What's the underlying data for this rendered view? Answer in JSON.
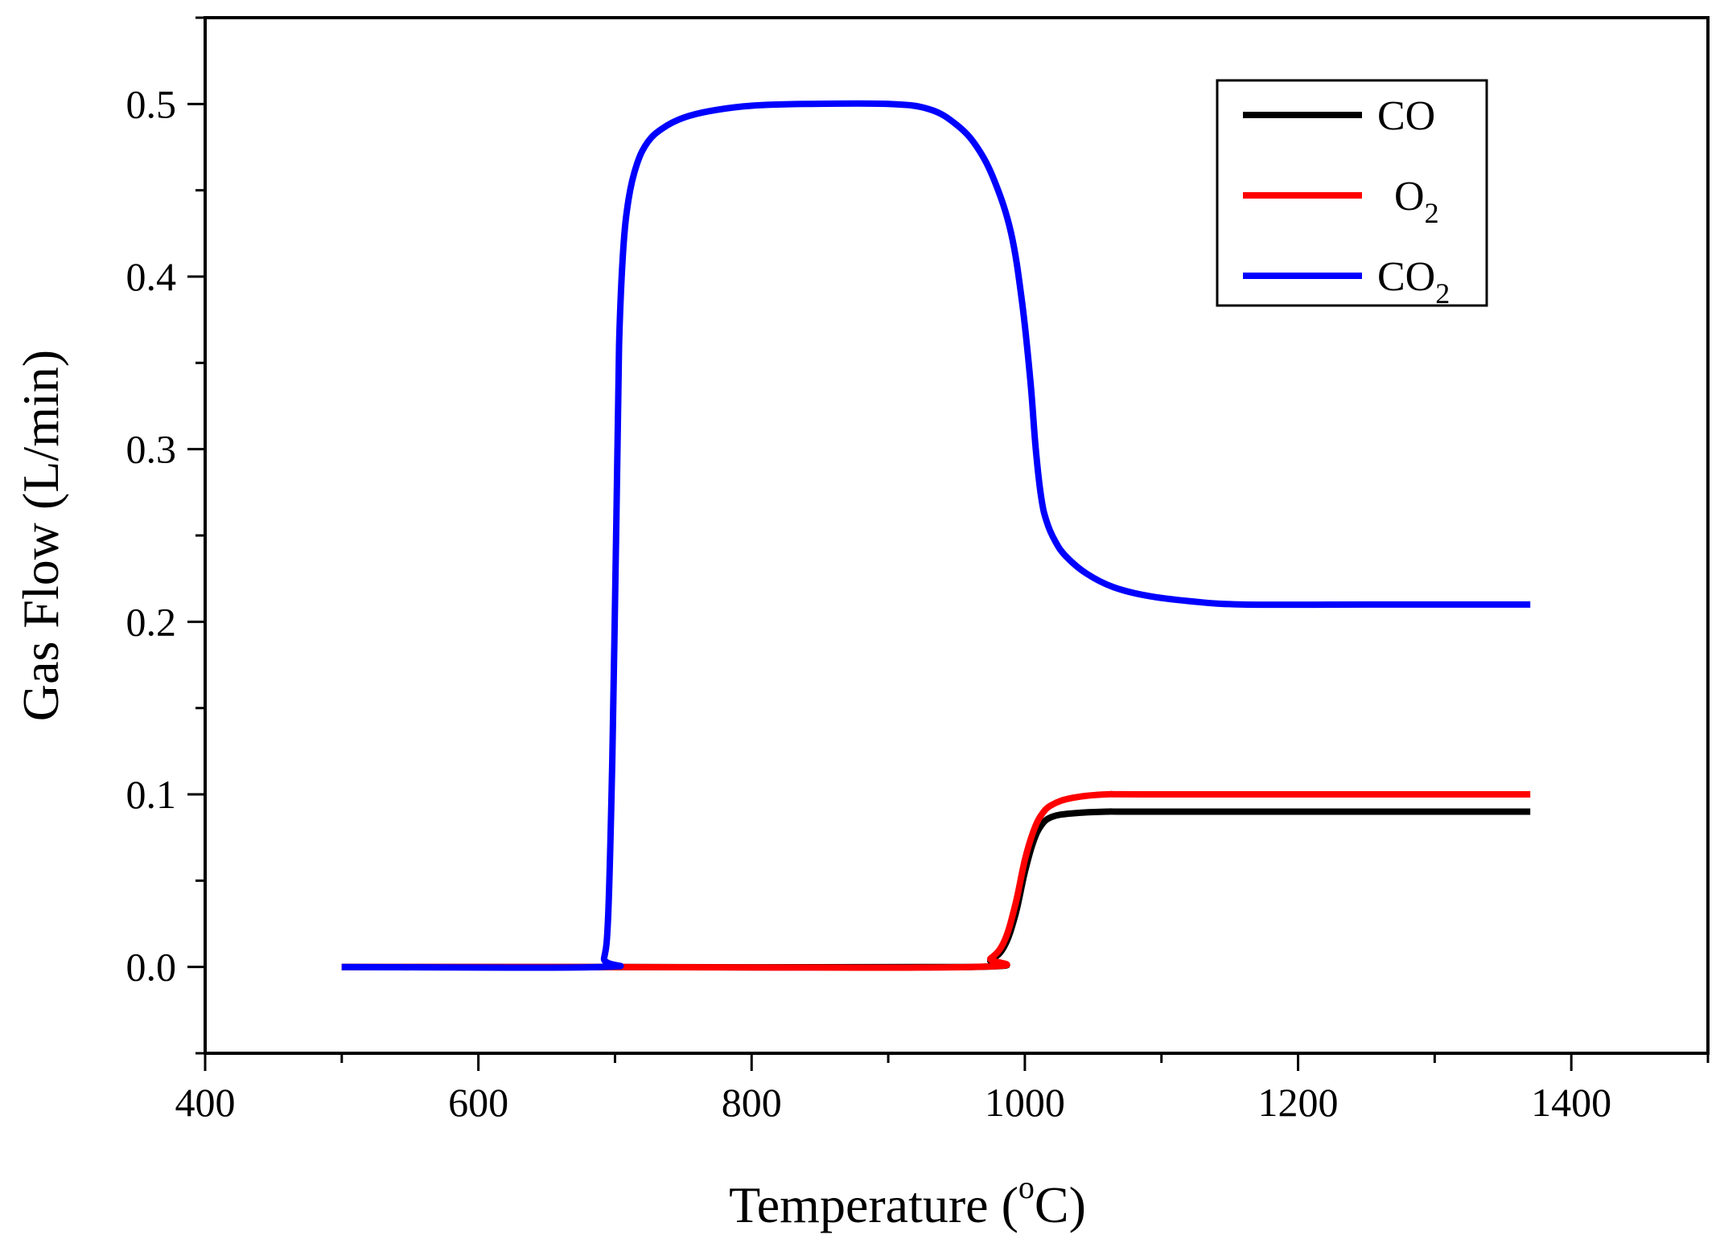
{
  "chart_data": {
    "type": "line",
    "title": "",
    "xlabel": "Temperature (",
    "xlabel_sup": "o",
    "xlabel_unit": "C)",
    "ylabel": "Gas Flow (L/min)",
    "xlim": [
      400,
      1500
    ],
    "ylim": [
      -0.05,
      0.55
    ],
    "xticks": [
      400,
      600,
      800,
      1000,
      1200,
      1400
    ],
    "xtick_labels": [
      "400",
      "600",
      "800",
      "1000",
      "1200",
      "1400"
    ],
    "yticks": [
      0.0,
      0.1,
      0.2,
      0.3,
      0.4,
      0.5
    ],
    "ytick_labels": [
      "0.0",
      "0.1",
      "0.2",
      "0.3",
      "0.4",
      "0.5"
    ],
    "grid": false,
    "legend_position": "top-right",
    "series": [
      {
        "name": "CO",
        "label_main": "CO",
        "label_sub": "",
        "color": "#000000",
        "x": [
          500,
          680,
          960,
          975,
          985,
          993,
          1000,
          1006,
          1012,
          1020,
          1035,
          1060,
          1100,
          1370
        ],
        "y": [
          0,
          0,
          0,
          0.004,
          0.012,
          0.03,
          0.055,
          0.072,
          0.082,
          0.087,
          0.089,
          0.09,
          0.09,
          0.09
        ]
      },
      {
        "name": "O2",
        "label_main": "O",
        "label_sub": "2",
        "color": "#ff0000",
        "x": [
          500,
          680,
          960,
          975,
          985,
          993,
          1000,
          1006,
          1012,
          1020,
          1035,
          1060,
          1100,
          1370
        ],
        "y": [
          0,
          0,
          0,
          0.005,
          0.015,
          0.036,
          0.062,
          0.078,
          0.088,
          0.094,
          0.098,
          0.1,
          0.1,
          0.1
        ]
      },
      {
        "name": "CO2",
        "label_main": "CO",
        "label_sub": "2",
        "color": "#0000ff",
        "x": [
          500,
          688,
          692,
          695,
          698,
          701,
          703,
          706,
          710,
          716,
          724,
          735,
          750,
          770,
          800,
          840,
          900,
          930,
          950,
          965,
          978,
          990,
          998,
          1004,
          1008,
          1012,
          1016,
          1022,
          1030,
          1045,
          1065,
          1090,
          1120,
          1160,
          1250,
          1370
        ],
        "y": [
          0,
          0,
          0.005,
          0.03,
          0.12,
          0.26,
          0.36,
          0.415,
          0.445,
          0.465,
          0.478,
          0.486,
          0.492,
          0.496,
          0.499,
          0.5,
          0.5,
          0.497,
          0.488,
          0.475,
          0.455,
          0.425,
          0.385,
          0.34,
          0.3,
          0.272,
          0.258,
          0.247,
          0.238,
          0.228,
          0.22,
          0.215,
          0.212,
          0.21,
          0.21,
          0.21
        ]
      }
    ]
  }
}
